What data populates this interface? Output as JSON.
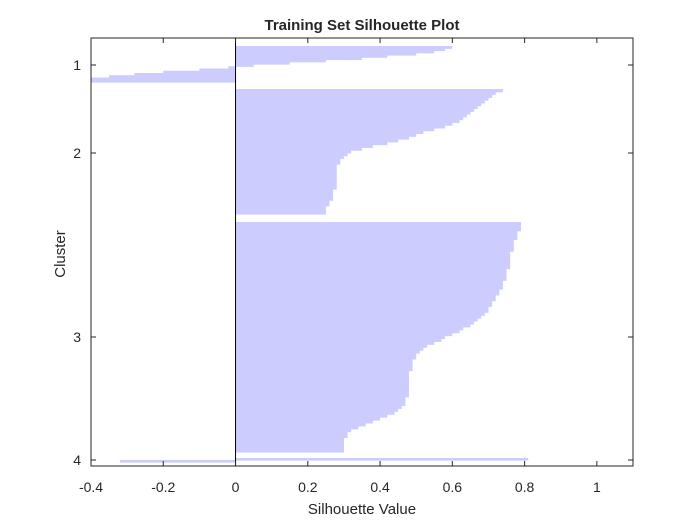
{
  "chart_data": {
    "type": "bar",
    "orientation": "horizontal",
    "title": "Training Set Silhouette Plot",
    "xlabel": "Silhouette Value",
    "ylabel": "Cluster",
    "xlim": [
      -0.4,
      1.1
    ],
    "x_ticks": [
      "-0.4",
      "-0.2",
      "0",
      "0.2",
      "0.4",
      "0.6",
      "0.8",
      "1"
    ],
    "y_ticks": [
      "1",
      "2",
      "3",
      "4"
    ],
    "bar_color": "#ccccff",
    "grid": false,
    "clusters": [
      {
        "name": "1",
        "values": [
          0.6,
          0.58,
          0.55,
          0.5,
          0.42,
          0.35,
          0.25,
          0.15,
          0.05,
          -0.02,
          -0.1,
          -0.2,
          -0.28,
          -0.35,
          -0.4,
          -0.4
        ]
      },
      {
        "name": "2",
        "values": [
          0.74,
          0.72,
          0.71,
          0.7,
          0.69,
          0.68,
          0.67,
          0.66,
          0.65,
          0.64,
          0.63,
          0.62,
          0.6,
          0.58,
          0.55,
          0.52,
          0.5,
          0.48,
          0.45,
          0.42,
          0.38,
          0.35,
          0.32,
          0.31,
          0.3,
          0.29,
          0.29,
          0.28,
          0.28,
          0.28,
          0.28,
          0.28,
          0.28,
          0.28,
          0.28,
          0.28,
          0.27,
          0.27,
          0.27,
          0.27,
          0.26,
          0.26,
          0.25,
          0.25,
          0.25
        ]
      },
      {
        "name": "3",
        "values": [
          0.79,
          0.79,
          0.79,
          0.78,
          0.78,
          0.78,
          0.77,
          0.77,
          0.77,
          0.77,
          0.76,
          0.76,
          0.76,
          0.76,
          0.76,
          0.76,
          0.75,
          0.75,
          0.75,
          0.75,
          0.74,
          0.74,
          0.74,
          0.73,
          0.73,
          0.72,
          0.72,
          0.71,
          0.71,
          0.7,
          0.7,
          0.69,
          0.68,
          0.67,
          0.66,
          0.65,
          0.63,
          0.62,
          0.6,
          0.58,
          0.57,
          0.55,
          0.53,
          0.52,
          0.51,
          0.5,
          0.5,
          0.49,
          0.49,
          0.49,
          0.49,
          0.48,
          0.48,
          0.48,
          0.48,
          0.48,
          0.48,
          0.48,
          0.48,
          0.48,
          0.47,
          0.47,
          0.47,
          0.46,
          0.45,
          0.44,
          0.42,
          0.4,
          0.38,
          0.36,
          0.34,
          0.32,
          0.31,
          0.31,
          0.3,
          0.3,
          0.3,
          0.3,
          0.3
        ]
      },
      {
        "name": "4",
        "values": [
          0.81,
          -0.32
        ]
      }
    ]
  }
}
